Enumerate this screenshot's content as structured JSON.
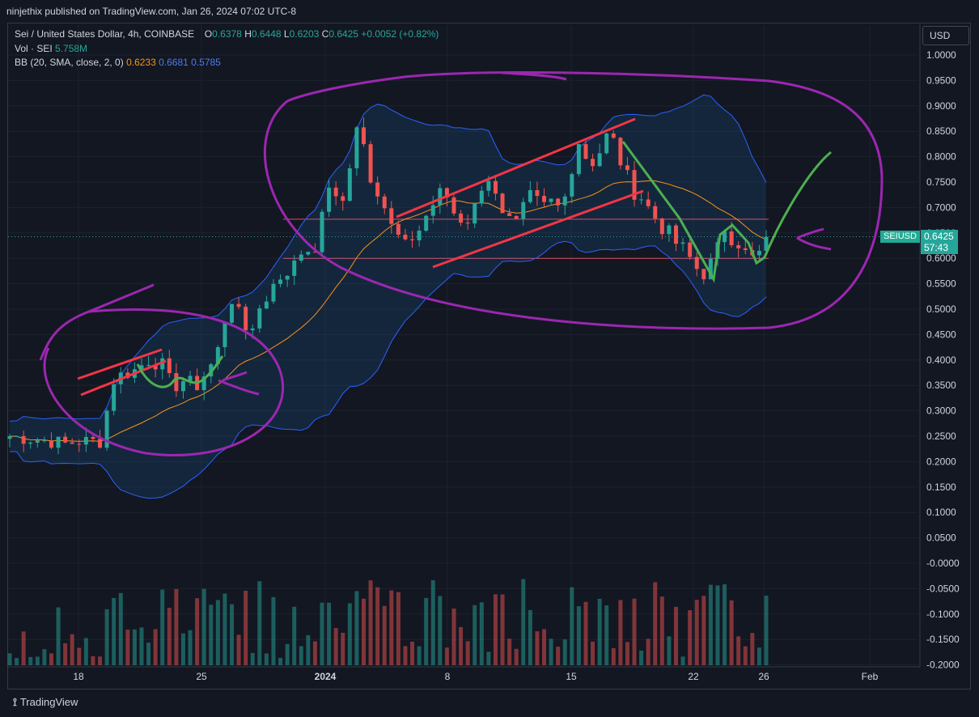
{
  "header": {
    "published": "ninjethix published on TradingView.com, Jan 26, 2024 07:02 UTC-8"
  },
  "legend": {
    "symbol": "Sei / United States Dollar, 4h, COINBASE",
    "o_label": "O",
    "o_value": "0.6378",
    "h_label": "H",
    "h_value": "0.6448",
    "l_label": "L",
    "l_value": "0.6203",
    "c_label": "C",
    "c_value": "0.6425",
    "change": "+0.0052 (+0.82%)",
    "vol_label": "Vol · SEI",
    "vol_value": "5.758M",
    "bb_label": "BB (20, SMA, close, 2, 0)",
    "bb_basis": "0.6233",
    "bb_upper": "0.6681",
    "bb_lower": "0.5785"
  },
  "currency_button": "USD",
  "price_tag": {
    "symbol": "SEIUSD",
    "price": "0.6425",
    "countdown": "57:43"
  },
  "footer": {
    "brand": "TradingView"
  },
  "colors": {
    "background": "#131722",
    "grid": "#1e222d",
    "up": "#26a69a",
    "down": "#ef5350",
    "bb_band": "#2962ff",
    "bb_basis": "#f7931a",
    "annotation_purple": "#9c27b0",
    "annotation_red": "#f23645",
    "annotation_green": "#4caf50"
  },
  "chart_data": {
    "type": "candlestick",
    "y_ticks": [
      "1.0000",
      "0.9500",
      "0.9000",
      "0.8500",
      "0.8000",
      "0.7500",
      "0.7000",
      "0.6500",
      "0.6000",
      "0.5500",
      "0.5000",
      "0.4500",
      "0.4000",
      "0.3500",
      "0.3000",
      "0.2500",
      "0.2000",
      "0.1500",
      "0.1000",
      "0.0500",
      "-0.0000",
      "-0.0500",
      "-0.1000",
      "-0.1500",
      "-0.2000"
    ],
    "x_ticks": [
      "18",
      "25",
      "2024",
      "8",
      "15",
      "22",
      "26",
      "Feb"
    ],
    "ylim": [
      -0.2,
      1.0
    ],
    "last_close": 0.6425,
    "horizontal_levels": [
      0.677,
      0.6
    ],
    "price_path": [
      [
        0,
        0.25
      ],
      [
        3,
        0.245
      ],
      [
        6,
        0.24
      ],
      [
        8,
        0.235
      ],
      [
        10,
        0.24
      ],
      [
        13,
        0.24
      ],
      [
        14,
        0.3
      ],
      [
        15,
        0.36
      ],
      [
        16,
        0.37
      ],
      [
        18,
        0.38
      ],
      [
        20,
        0.4
      ],
      [
        22,
        0.39
      ],
      [
        23,
        0.36
      ],
      [
        24,
        0.35
      ],
      [
        25,
        0.36
      ],
      [
        26,
        0.355
      ],
      [
        27,
        0.35
      ],
      [
        28,
        0.37
      ],
      [
        29,
        0.39
      ],
      [
        30,
        0.42
      ],
      [
        31,
        0.48
      ],
      [
        32,
        0.52
      ],
      [
        33,
        0.49
      ],
      [
        34,
        0.46
      ],
      [
        35,
        0.47
      ],
      [
        36,
        0.5
      ],
      [
        37,
        0.52
      ],
      [
        38,
        0.56
      ],
      [
        39,
        0.55
      ],
      [
        40,
        0.57
      ],
      [
        41,
        0.6
      ],
      [
        42,
        0.62
      ],
      [
        43,
        0.6
      ],
      [
        44,
        0.62
      ],
      [
        45,
        0.68
      ],
      [
        46,
        0.74
      ],
      [
        47,
        0.73
      ],
      [
        48,
        0.71
      ],
      [
        49,
        0.78
      ],
      [
        50,
        0.85
      ],
      [
        51,
        0.82
      ],
      [
        52,
        0.76
      ],
      [
        53,
        0.73
      ],
      [
        54,
        0.7
      ],
      [
        55,
        0.68
      ],
      [
        56,
        0.66
      ],
      [
        57,
        0.64
      ],
      [
        58,
        0.63
      ],
      [
        59,
        0.65
      ],
      [
        60,
        0.67
      ],
      [
        61,
        0.71
      ],
      [
        62,
        0.74
      ],
      [
        63,
        0.72
      ],
      [
        64,
        0.69
      ],
      [
        65,
        0.66
      ],
      [
        66,
        0.67
      ],
      [
        67,
        0.71
      ],
      [
        68,
        0.74
      ],
      [
        69,
        0.76
      ],
      [
        70,
        0.72
      ],
      [
        71,
        0.7
      ],
      [
        72,
        0.69
      ],
      [
        73,
        0.67
      ],
      [
        74,
        0.7
      ],
      [
        75,
        0.72
      ],
      [
        76,
        0.71
      ],
      [
        77,
        0.7
      ],
      [
        78,
        0.71
      ],
      [
        79,
        0.7
      ],
      [
        80,
        0.72
      ],
      [
        81,
        0.78
      ],
      [
        82,
        0.83
      ],
      [
        83,
        0.8
      ],
      [
        84,
        0.79
      ],
      [
        85,
        0.81
      ],
      [
        86,
        0.84
      ],
      [
        87,
        0.83
      ],
      [
        88,
        0.79
      ],
      [
        89,
        0.76
      ],
      [
        90,
        0.73
      ],
      [
        91,
        0.72
      ],
      [
        92,
        0.7
      ],
      [
        93,
        0.68
      ],
      [
        94,
        0.66
      ],
      [
        95,
        0.65
      ],
      [
        96,
        0.63
      ],
      [
        97,
        0.62
      ],
      [
        98,
        0.6
      ],
      [
        99,
        0.58
      ],
      [
        100,
        0.57
      ],
      [
        101,
        0.59
      ],
      [
        102,
        0.62
      ],
      [
        103,
        0.66
      ],
      [
        104,
        0.64
      ],
      [
        105,
        0.63
      ],
      [
        106,
        0.61
      ],
      [
        107,
        0.6
      ],
      [
        108,
        0.61
      ],
      [
        109,
        0.6425
      ]
    ]
  }
}
